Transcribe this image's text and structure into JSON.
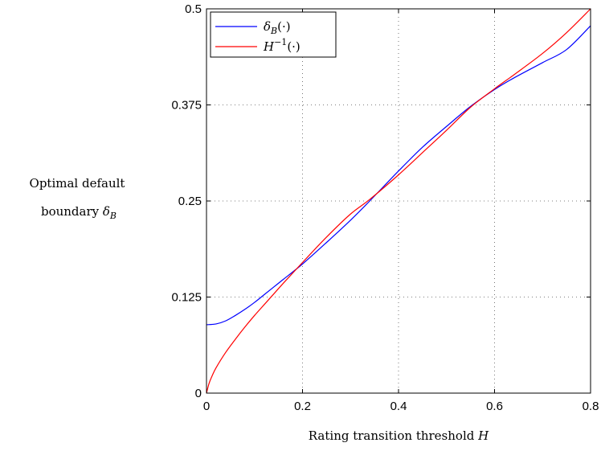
{
  "chart_data": {
    "type": "line",
    "title": "",
    "xlabel": "Rating transition threshold H",
    "ylabel": "Optimal default boundary δB",
    "ylabel_lines": [
      "Optimal default",
      "boundary δB"
    ],
    "xlim": [
      0,
      0.8
    ],
    "ylim": [
      0,
      0.5
    ],
    "x_ticks": [
      0,
      0.2,
      0.4,
      0.6,
      0.8
    ],
    "x_tick_labels": [
      "0",
      "0.2",
      "0.4",
      "0.6",
      "0.8"
    ],
    "y_ticks": [
      0,
      0.125,
      0.25,
      0.375,
      0.5
    ],
    "y_tick_labels": [
      "0",
      "0.125",
      "0.25",
      "0.375",
      "0.5"
    ],
    "grid": true,
    "legend_position": "top-left",
    "series": [
      {
        "name": "δB(·)",
        "color": "#0000ff",
        "x": [
          0,
          0.02,
          0.04,
          0.06,
          0.08,
          0.1,
          0.12,
          0.14,
          0.16,
          0.2,
          0.25,
          0.3,
          0.34,
          0.4,
          0.45,
          0.5,
          0.55,
          0.6,
          0.64,
          0.7,
          0.75,
          0.8
        ],
        "y": [
          0.089,
          0.09,
          0.094,
          0.101,
          0.109,
          0.118,
          0.128,
          0.138,
          0.148,
          0.168,
          0.196,
          0.225,
          0.25,
          0.289,
          0.32,
          0.347,
          0.373,
          0.395,
          0.41,
          0.43,
          0.447,
          0.478
        ]
      },
      {
        "name": "H^{-1}(·)",
        "color": "#ff0000",
        "x": [
          0,
          0.005,
          0.01,
          0.02,
          0.04,
          0.06,
          0.08,
          0.1,
          0.12,
          0.14,
          0.16,
          0.2,
          0.25,
          0.3,
          0.34,
          0.4,
          0.45,
          0.5,
          0.55,
          0.6,
          0.64,
          0.7,
          0.75,
          0.8
        ],
        "y": [
          0.0,
          0.012,
          0.02,
          0.033,
          0.053,
          0.07,
          0.086,
          0.101,
          0.115,
          0.129,
          0.143,
          0.17,
          0.203,
          0.233,
          0.252,
          0.284,
          0.313,
          0.342,
          0.372,
          0.396,
          0.414,
          0.442,
          0.469,
          0.5
        ]
      }
    ]
  }
}
